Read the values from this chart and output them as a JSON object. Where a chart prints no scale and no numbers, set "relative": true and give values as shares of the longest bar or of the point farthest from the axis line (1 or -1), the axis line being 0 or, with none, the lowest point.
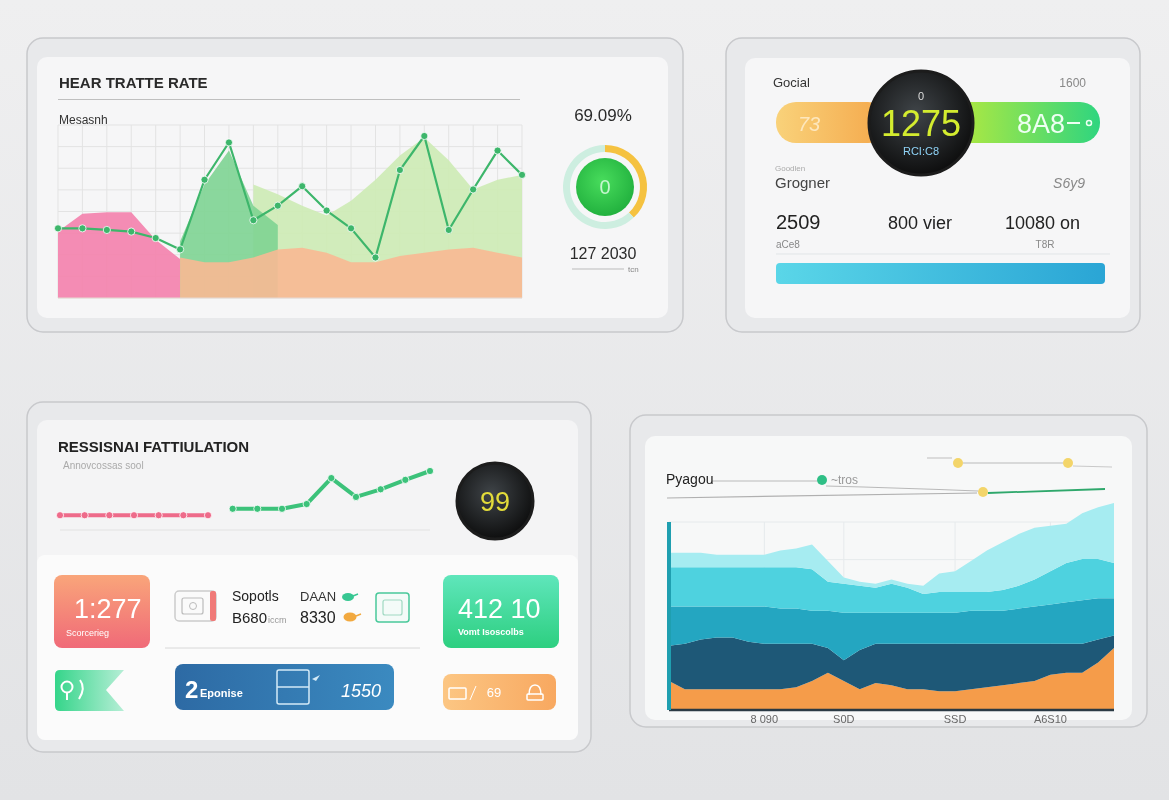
{
  "chart_data": [
    {
      "type": "area",
      "title": "HEAR TRATTE RATE",
      "subtitle": "Mesasnh",
      "relative": true,
      "grid": true,
      "categories": [
        null,
        null,
        null,
        null,
        null,
        null,
        null,
        null,
        null,
        null,
        null,
        null,
        null,
        null,
        null,
        null,
        null,
        null,
        null,
        null
      ],
      "series": [
        {
          "type": "area",
          "color": "#cdebb4",
          "values": [
            null,
            null,
            null,
            null,
            null,
            null,
            null,
            null,
            0.7,
            0.64,
            0.57,
            0.51,
            0.6,
            0.73,
            0.88,
            0.99,
            0.85,
            0.67,
            0.73,
            0.76
          ]
        },
        {
          "type": "area",
          "color": "#7ed492",
          "values": [
            null,
            null,
            null,
            null,
            null,
            0.35,
            0.7,
            0.91,
            0.57,
            0.45,
            null,
            null,
            null,
            null,
            null,
            null,
            null,
            null,
            null,
            null
          ]
        },
        {
          "type": "area",
          "color": "#f481ac",
          "values": [
            0.41,
            0.52,
            0.53,
            0.53,
            0.36,
            0.24,
            null,
            null,
            null,
            null,
            null,
            null,
            null,
            null,
            null,
            null,
            null,
            null,
            null,
            null
          ]
        },
        {
          "type": "area",
          "color": "#f8b993",
          "values": [
            null,
            null,
            null,
            null,
            null,
            0.25,
            0.22,
            0.22,
            0.25,
            0.3,
            0.31,
            0.28,
            0.22,
            0.22,
            0.26,
            0.28,
            0.3,
            0.31,
            0.28,
            0.25
          ]
        },
        {
          "type": "line",
          "color": "#3db66b",
          "marker": "circle",
          "values": [
            0.43,
            0.43,
            0.42,
            0.41,
            0.37,
            0.3,
            0.73,
            0.96,
            0.48,
            0.57,
            0.69,
            0.54,
            0.43,
            0.25,
            0.79,
            1.0,
            0.42,
            0.67,
            0.91,
            0.76
          ]
        }
      ]
    },
    {
      "type": "donut",
      "title": "69.09%",
      "categories": [
        null,
        null
      ],
      "values": [
        38,
        62
      ],
      "colors": [
        "#f5c240",
        "#cdeee0"
      ],
      "annotations": [
        "0",
        "127 2030",
        "tcn"
      ]
    },
    {
      "type": "other",
      "annotations": [
        "Gocial",
        "1600",
        "73",
        "0",
        "1275",
        "RCI:C8",
        "8A8",
        "Goodlen",
        "Grogner",
        "S6y9",
        "2509",
        "800 vier",
        "10080 on",
        "aCe8",
        "T8R"
      ]
    },
    {
      "type": "line",
      "title": "RESSISNAI FATTIULATION",
      "subtitle": "Annovcossas sool",
      "relative": true,
      "marker": "circle",
      "categories": [
        null,
        null,
        null,
        null,
        null,
        null,
        null,
        null,
        null,
        null,
        null,
        null,
        null,
        null,
        null,
        null
      ],
      "series": [
        {
          "color": "#ee6b8a",
          "values": [
            0.25,
            0.25,
            0.25,
            0.25,
            0.25,
            0.25,
            0.25,
            null,
            null,
            null,
            null,
            null,
            null,
            null,
            null,
            null
          ]
        },
        {
          "color": "#3cc27a",
          "values": [
            null,
            null,
            null,
            null,
            null,
            null,
            null,
            0.36,
            0.36,
            0.36,
            0.44,
            0.88,
            0.56,
            0.69,
            0.85,
            1.0
          ]
        }
      ],
      "annotations": [
        "99"
      ]
    },
    {
      "type": "other",
      "annotations": [
        "1:277",
        "Scorcerieg",
        "Sopotls",
        "DAAN",
        "B680",
        "iccm",
        "8330",
        "412 10",
        "Vomt Isoscolbs",
        "2",
        "Eponise",
        "1550",
        "69"
      ]
    },
    {
      "type": "area",
      "title": "Pyagou",
      "relative": true,
      "stacked": true,
      "grid": true,
      "categories": [
        null,
        null,
        null,
        null,
        null,
        null,
        "8 090",
        null,
        null,
        null,
        null,
        "S0D",
        null,
        null,
        null,
        null,
        null,
        null,
        "SSD",
        null,
        null,
        null,
        null,
        null,
        "A6S10",
        null,
        null,
        null,
        null
      ],
      "series": [
        {
          "color": "#f59c4a",
          "values": [
            0.14,
            0.1,
            0.1,
            0.1,
            0.1,
            0.1,
            0.1,
            0.1,
            0.11,
            0.14,
            0.18,
            0.14,
            0.1,
            0.13,
            0.12,
            0.1,
            0.1,
            0.09,
            0.09,
            0.1,
            0.11,
            0.12,
            0.13,
            0.14,
            0.17,
            0.18,
            0.18,
            0.23,
            0.3
          ]
        },
        {
          "color": "#1e5877",
          "values": [
            0.17,
            0.22,
            0.24,
            0.25,
            0.25,
            0.23,
            0.22,
            0.22,
            0.21,
            0.18,
            0.12,
            0.1,
            0.19,
            0.19,
            0.2,
            0.22,
            0.22,
            0.23,
            0.23,
            0.22,
            0.21,
            0.2,
            0.19,
            0.18,
            0.15,
            0.14,
            0.14,
            0.11,
            0.06
          ]
        },
        {
          "color": "#24a6c1",
          "values": [
            0.19,
            0.18,
            0.16,
            0.15,
            0.15,
            0.17,
            0.18,
            0.17,
            0.17,
            0.16,
            0.18,
            0.23,
            0.18,
            0.15,
            0.15,
            0.15,
            0.15,
            0.15,
            0.15,
            0.16,
            0.16,
            0.16,
            0.17,
            0.18,
            0.19,
            0.2,
            0.21,
            0.2,
            0.18
          ]
        },
        {
          "color": "#4ed2df",
          "values": [
            0.19,
            0.19,
            0.19,
            0.19,
            0.19,
            0.19,
            0.19,
            0.2,
            0.2,
            0.2,
            0.14,
            0.14,
            0.13,
            0.12,
            0.14,
            0.12,
            0.09,
            0.1,
            0.1,
            0.09,
            0.09,
            0.1,
            0.11,
            0.13,
            0.16,
            0.19,
            0.2,
            0.19,
            0.17
          ]
        },
        {
          "color": "#a6ecf1",
          "values": [
            0.07,
            0.07,
            0.07,
            0.06,
            0.06,
            0.06,
            0.06,
            0.08,
            0.09,
            0.12,
            0.1,
            0.03,
            0.02,
            0.02,
            0.02,
            0.02,
            0.04,
            0.09,
            0.1,
            0.15,
            0.2,
            0.23,
            0.25,
            0.25,
            0.22,
            0.19,
            0.22,
            0.25,
            0.29
          ]
        }
      ],
      "annotations": [
        "~tros"
      ]
    }
  ]
}
